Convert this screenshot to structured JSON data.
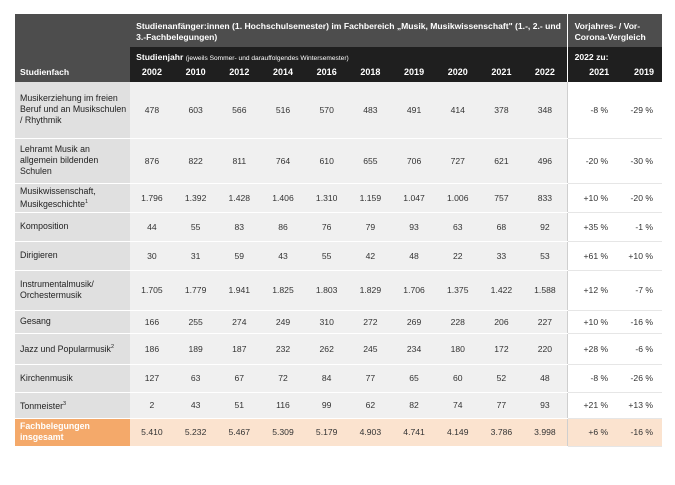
{
  "header": {
    "title": "Studienanfänger:innen (1. Hochschulsemester) im Fachbereich „Musik, Musikwissenschaft\" (1.-, 2.- und 3.-Fachbelegungen)",
    "comparison_title": "Vorjahres- / Vor-Corona-Vergleich",
    "studienfach": "Studienfach",
    "studienjahr": "Studienjahr",
    "studienjahr_note": "(jeweils Sommer- und darauffolgendes Wintersemester)",
    "comparison_sub": "2022 zu:",
    "years": [
      "2002",
      "2010",
      "2012",
      "2014",
      "2016",
      "2018",
      "2019",
      "2020",
      "2021",
      "2022"
    ],
    "comparison_years": [
      "2021",
      "2019"
    ]
  },
  "rows": [
    {
      "label": "Musikerziehung im freien Beruf und an Musikschulen / Rhythmik",
      "sup": "",
      "values": [
        "478",
        "603",
        "566",
        "516",
        "570",
        "483",
        "491",
        "414",
        "378",
        "348"
      ],
      "pct": [
        "-8 %",
        "-29 %"
      ]
    },
    {
      "label": "Lehramt Musik an allgemein bildenden Schulen",
      "sup": "",
      "values": [
        "876",
        "822",
        "811",
        "764",
        "610",
        "655",
        "706",
        "727",
        "621",
        "496"
      ],
      "pct": [
        "-20 %",
        "-30 %"
      ]
    },
    {
      "label": "Musikwissenschaft, Musikgeschichte",
      "sup": "1",
      "values": [
        "1.796",
        "1.392",
        "1.428",
        "1.406",
        "1.310",
        "1.159",
        "1.047",
        "1.006",
        "757",
        "833"
      ],
      "pct": [
        "+10 %",
        "-20 %"
      ]
    },
    {
      "label": "Komposition",
      "sup": "",
      "values": [
        "44",
        "55",
        "83",
        "86",
        "76",
        "79",
        "93",
        "63",
        "68",
        "92"
      ],
      "pct": [
        "+35 %",
        "-1 %"
      ]
    },
    {
      "label": "Dirigieren",
      "sup": "",
      "values": [
        "30",
        "31",
        "59",
        "43",
        "55",
        "42",
        "48",
        "22",
        "33",
        "53"
      ],
      "pct": [
        "+61 %",
        "+10 %"
      ]
    },
    {
      "label": "Instrumentalmusik/ Orchestermusik",
      "sup": "",
      "values": [
        "1.705",
        "1.779",
        "1.941",
        "1.825",
        "1.803",
        "1.829",
        "1.706",
        "1.375",
        "1.422",
        "1.588"
      ],
      "pct": [
        "+12 %",
        "-7 %"
      ]
    },
    {
      "label": "Gesang",
      "sup": "",
      "values": [
        "166",
        "255",
        "274",
        "249",
        "310",
        "272",
        "269",
        "228",
        "206",
        "227"
      ],
      "pct": [
        "+10 %",
        "-16 %"
      ]
    },
    {
      "label": "Jazz und Popularmusik",
      "sup": "2",
      "values": [
        "186",
        "189",
        "187",
        "232",
        "262",
        "245",
        "234",
        "180",
        "172",
        "220"
      ],
      "pct": [
        "+28 %",
        "-6 %"
      ]
    },
    {
      "label": "Kirchenmusik",
      "sup": "",
      "values": [
        "127",
        "63",
        "67",
        "72",
        "84",
        "77",
        "65",
        "60",
        "52",
        "48"
      ],
      "pct": [
        "-8 %",
        "-26 %"
      ]
    },
    {
      "label": "Tonmeister",
      "sup": "3",
      "values": [
        "2",
        "43",
        "51",
        "116",
        "99",
        "62",
        "82",
        "74",
        "77",
        "93"
      ],
      "pct": [
        "+21 %",
        "+13 %"
      ]
    }
  ],
  "total": {
    "label": "Fachbelegungen insgesamt",
    "values": [
      "5.410",
      "5.232",
      "5.467",
      "5.309",
      "5.179",
      "4.903",
      "4.741",
      "4.149",
      "3.786",
      "3.998"
    ],
    "pct": [
      "+6 %",
      "-16 %"
    ]
  },
  "colors": {
    "header_dark": "#4d4d4d",
    "header_black": "#1f1f1f",
    "label_bg": "#e0e0e0",
    "value_bg": "#f0f0f0",
    "total_label": "#f4a96a",
    "total_values": "#fbe3cf"
  }
}
